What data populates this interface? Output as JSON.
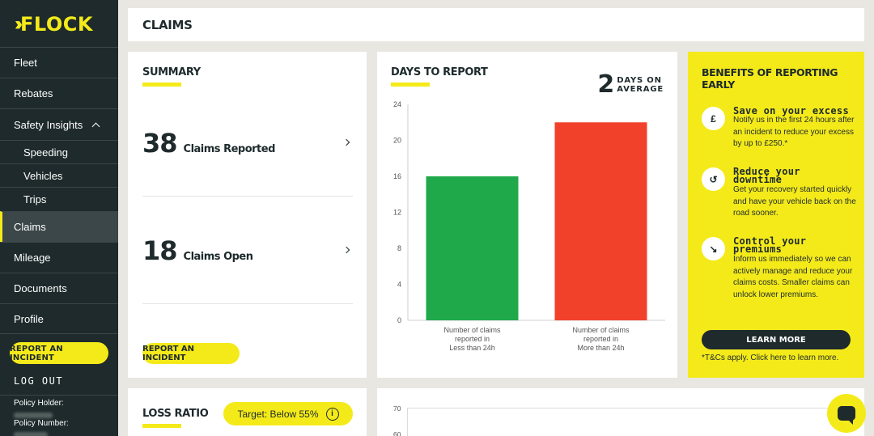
{
  "sidebar": {
    "logo": "FLOCK",
    "items": [
      {
        "label": "Fleet"
      },
      {
        "label": "Rebates"
      },
      {
        "label": "Safety Insights"
      },
      {
        "label": "Speeding"
      },
      {
        "label": "Vehicles"
      },
      {
        "label": "Trips"
      },
      {
        "label": "Claims"
      },
      {
        "label": "Mileage"
      },
      {
        "label": "Documents"
      },
      {
        "label": "Profile"
      }
    ],
    "report_button": "REPORT AN INCIDENT",
    "logout": "LOG OUT",
    "policy_holder_label": "Policy Holder:",
    "policy_number_label": "Policy Number:"
  },
  "header": {
    "title": "CLAIMS"
  },
  "summary": {
    "title": "SUMMARY",
    "reported_count": "38",
    "reported_label": "Claims Reported",
    "open_count": "18",
    "open_label": "Claims Open",
    "report_button": "REPORT AN INCIDENT"
  },
  "days_to_report": {
    "title": "DAYS TO REPORT",
    "average_value": "2",
    "average_line1": "DAYS ON",
    "average_line2": "AVERAGE"
  },
  "chart_data": {
    "type": "bar",
    "categories": [
      [
        "Number of claims",
        "reported in",
        "Less than 24h"
      ],
      [
        "Number of claims",
        "reported in",
        "More than 24h"
      ]
    ],
    "values": [
      16,
      22
    ],
    "colors": [
      "#1fa94b",
      "#f2412b"
    ],
    "ylim": [
      0,
      24
    ],
    "yticks": [
      0,
      4,
      8,
      12,
      16,
      20,
      24
    ],
    "grid": false
  },
  "benefits": {
    "title": "BENEFITS OF REPORTING EARLY",
    "items": [
      {
        "icon": "pound-icon",
        "glyph": "£",
        "heading": "Save on your excess",
        "body": "Notify us in the first 24 hours after an incident to reduce your excess by up to £250.*"
      },
      {
        "icon": "history-icon",
        "glyph": "↺",
        "heading": "Reduce your downtime",
        "body": "Get your recovery started quickly and have your vehicle back on the road sooner."
      },
      {
        "icon": "trend-down-icon",
        "glyph": "↘",
        "heading": "Control your premiums",
        "body": "Inform us immediately so we can actively manage and reduce your claims costs. Smaller claims can unlock lower premiums."
      }
    ],
    "learn_more": "LEARN MORE",
    "terms": "*T&Cs apply. Click here to learn more."
  },
  "loss_ratio": {
    "title": "LOSS RATIO",
    "target": "Target: Below 55%"
  },
  "second_chart": {
    "yticks": [
      "70",
      "60"
    ]
  },
  "colors": {
    "accent": "#f4ea1a",
    "dark": "#1e2a2c"
  }
}
